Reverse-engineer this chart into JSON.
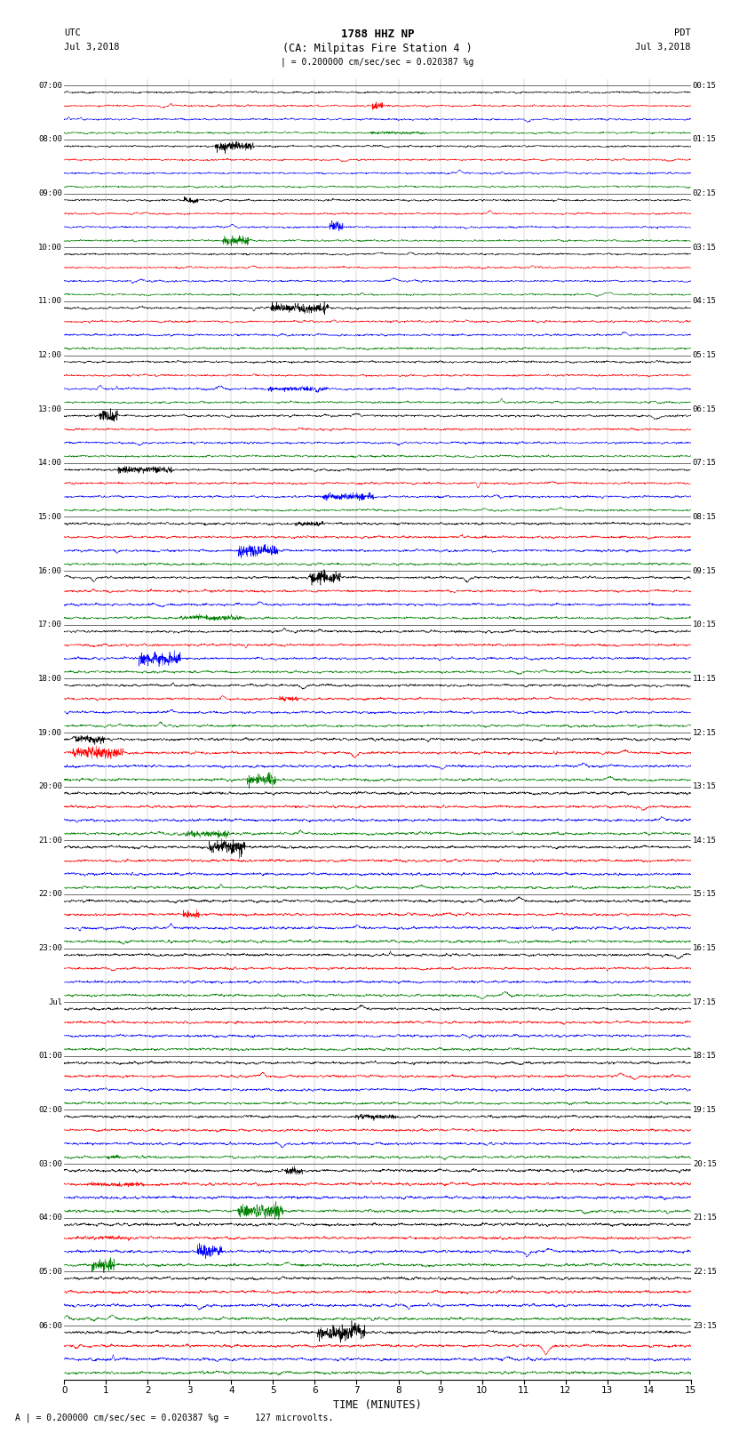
{
  "title_line1": "1788 HHZ NP",
  "title_line2": "(CA: Milpitas Fire Station 4 )",
  "scale_label": "| = 0.200000 cm/sec/sec = 0.020387 %g",
  "left_label_top": "UTC",
  "left_label_date": "Jul 3,2018",
  "right_label_top": "PDT",
  "right_label_date": "Jul 3,2018",
  "bottom_label": "TIME (MINUTES)",
  "footer_note": "A | = 0.200000 cm/sec/sec = 0.020387 %g =     127 microvolts.",
  "utc_hour_labels": [
    "07:00",
    "08:00",
    "09:00",
    "10:00",
    "11:00",
    "12:00",
    "13:00",
    "14:00",
    "15:00",
    "16:00",
    "17:00",
    "18:00",
    "19:00",
    "20:00",
    "21:00",
    "22:00",
    "23:00",
    "Jul",
    "01:00",
    "02:00",
    "03:00",
    "04:00",
    "05:00",
    "06:00"
  ],
  "pdt_hour_labels": [
    "00:15",
    "01:15",
    "02:15",
    "03:15",
    "04:15",
    "05:15",
    "06:15",
    "07:15",
    "08:15",
    "09:15",
    "10:15",
    "11:15",
    "12:15",
    "13:15",
    "14:15",
    "15:15",
    "16:15",
    "17:15",
    "18:15",
    "19:15",
    "20:15",
    "21:15",
    "22:15",
    "23:15"
  ],
  "trace_colors": [
    "black",
    "red",
    "blue",
    "green"
  ],
  "n_hours": 24,
  "traces_per_hour": 4,
  "minutes": 15,
  "bg_color": "white",
  "trace_linewidth": 0.35,
  "xmin": 0,
  "xmax": 15,
  "samples_per_min": 200
}
